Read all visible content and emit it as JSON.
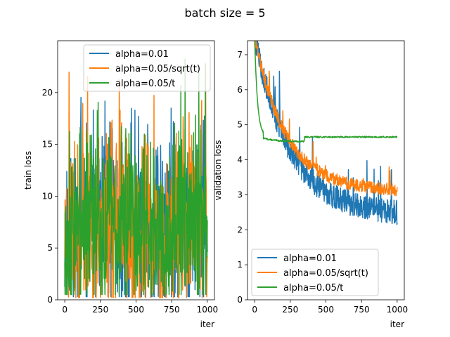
{
  "figure": {
    "suptitle": "batch size = 5"
  },
  "chart_data": [
    {
      "type": "line",
      "xlabel": "iter",
      "ylabel": "train loss",
      "xlim": [
        -50,
        1050
      ],
      "ylim": [
        0,
        25
      ],
      "xticks": [
        0,
        250,
        500,
        750,
        1000
      ],
      "yticks": [
        0,
        5,
        10,
        15,
        20
      ],
      "legend": "top-right",
      "pattern": "noisy",
      "series": [
        {
          "name": "alpha=0.01",
          "color": "#1f77b4",
          "center": 7.0,
          "spread": 6.5,
          "min": 0.3,
          "max": 22.0,
          "seed": 11
        },
        {
          "name": "alpha=0.05/sqrt(t)",
          "color": "#ff7f0e",
          "center": 7.0,
          "spread": 6.5,
          "min": 0.2,
          "max": 23.0,
          "seed": 23
        },
        {
          "name": "alpha=0.05/t",
          "color": "#2ca02c",
          "center": 7.5,
          "spread": 6.0,
          "min": 0.5,
          "max": 25.0,
          "seed": 37
        }
      ]
    },
    {
      "type": "line",
      "xlabel": "iter",
      "ylabel": "validation loss",
      "xlim": [
        -50,
        1050
      ],
      "ylim": [
        0,
        7.4
      ],
      "xticks": [
        0,
        250,
        500,
        750,
        1000
      ],
      "yticks": [
        0,
        1,
        2,
        3,
        4,
        5,
        6,
        7
      ],
      "legend": "bottom-left",
      "pattern": "decay",
      "series": [
        {
          "name": "alpha=0.01",
          "color": "#1f77b4",
          "start": 7.5,
          "end": 2.4,
          "tau": 250,
          "noise": 0.35,
          "seed": 5
        },
        {
          "name": "alpha=0.05/sqrt(t)",
          "color": "#ff7f0e",
          "start": 7.5,
          "end": 3.1,
          "tau": 220,
          "noise": 0.18,
          "seed": 9
        },
        {
          "name": "alpha=0.05/t",
          "color": "#2ca02c",
          "start": 7.5,
          "end": 4.65,
          "tau": 20,
          "noise": 0.02,
          "seed": 13,
          "minDip": 4.52
        }
      ]
    }
  ]
}
